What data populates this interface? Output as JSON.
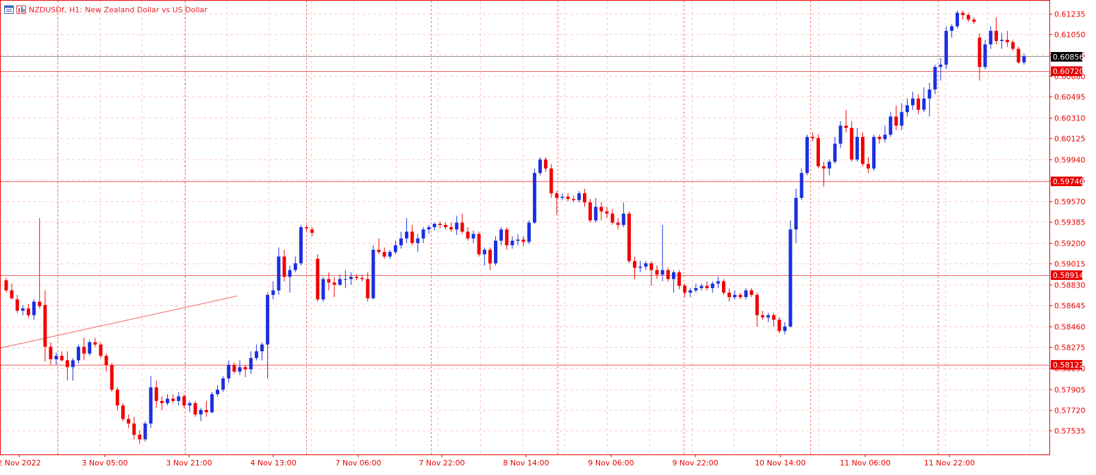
{
  "header": {
    "symbol": "NZDUSDf,",
    "timeframe": "H1:",
    "description": "New Zealand Dollar vs US Dollar",
    "icons": [
      "chart-window-icon",
      "indicator-icon"
    ]
  },
  "colors": {
    "bull": "#1a2fe0",
    "bear": "#f00000",
    "grid": "#ffc9c9",
    "frame": "#e80000",
    "level": "#f26060",
    "bid": "#909090",
    "text": "#e80000"
  },
  "chart_data": {
    "type": "candlestick",
    "symbol": "NZDUSDf",
    "timeframe": "H1",
    "title": "New Zealand Dollar vs US Dollar",
    "ylim": [
      0.5742,
      0.613
    ],
    "price_ticks": [
      "0.61235",
      "0.61050",
      "0.60865",
      "0.60680",
      "0.60495",
      "0.60310",
      "0.60125",
      "0.59940",
      "0.59755",
      "0.59570",
      "0.59385",
      "0.59200",
      "0.59015",
      "0.58830",
      "0.58645",
      "0.58460",
      "0.58275",
      "0.58090",
      "0.57905",
      "0.57720",
      "0.57535"
    ],
    "time_labels": [
      "2 Nov 2022",
      "3 Nov 05:00",
      "3 Nov 21:00",
      "4 Nov 13:00",
      "7 Nov 06:00",
      "7 Nov 22:00",
      "8 Nov 14:00",
      "9 Nov 06:00",
      "9 Nov 22:00",
      "10 Nov 14:00",
      "11 Nov 06:00",
      "11 Nov 22:00"
    ],
    "bid_price": "0.60856",
    "horizontal_levels": [
      "0.60720",
      "0.59746",
      "0.58914",
      "0.58122"
    ],
    "trendline": {
      "start_price": 0.5827,
      "end_price": 0.5873
    },
    "candles": [
      [
        0.5887,
        0.5889,
        0.5876,
        0.5878
      ],
      [
        0.5878,
        0.5884,
        0.587,
        0.5871
      ],
      [
        0.587,
        0.5874,
        0.5858,
        0.586
      ],
      [
        0.586,
        0.5865,
        0.5856,
        0.5862
      ],
      [
        0.5862,
        0.5866,
        0.5854,
        0.5856
      ],
      [
        0.5856,
        0.587,
        0.5852,
        0.5868
      ],
      [
        0.5868,
        0.5942,
        0.5862,
        0.5864
      ],
      [
        0.5865,
        0.5878,
        0.5815,
        0.5828
      ],
      [
        0.5828,
        0.5832,
        0.5812,
        0.5817
      ],
      [
        0.5817,
        0.5823,
        0.5812,
        0.582
      ],
      [
        0.582,
        0.5824,
        0.5815,
        0.5816
      ],
      [
        0.5816,
        0.5824,
        0.5798,
        0.581
      ],
      [
        0.581,
        0.5818,
        0.5798,
        0.5816
      ],
      [
        0.5816,
        0.583,
        0.5813,
        0.5828
      ],
      [
        0.5828,
        0.5836,
        0.5816,
        0.5822
      ],
      [
        0.5822,
        0.5834,
        0.582,
        0.5832
      ],
      [
        0.5832,
        0.5836,
        0.5828,
        0.583
      ],
      [
        0.583,
        0.5832,
        0.5818,
        0.582
      ],
      [
        0.582,
        0.5822,
        0.5806,
        0.5812
      ],
      [
        0.5812,
        0.5814,
        0.5788,
        0.579
      ],
      [
        0.579,
        0.5792,
        0.5772,
        0.5776
      ],
      [
        0.5776,
        0.5778,
        0.5762,
        0.5764
      ],
      [
        0.5764,
        0.5768,
        0.5756,
        0.576
      ],
      [
        0.576,
        0.5766,
        0.5746,
        0.575
      ],
      [
        0.575,
        0.5754,
        0.5742,
        0.5746
      ],
      [
        0.5746,
        0.5762,
        0.5744,
        0.576
      ],
      [
        0.576,
        0.5802,
        0.5756,
        0.5792
      ],
      [
        0.5792,
        0.5798,
        0.5774,
        0.578
      ],
      [
        0.578,
        0.5784,
        0.5772,
        0.5778
      ],
      [
        0.5778,
        0.5786,
        0.5776,
        0.5782
      ],
      [
        0.5782,
        0.5786,
        0.5778,
        0.578
      ],
      [
        0.578,
        0.5788,
        0.5776,
        0.5784
      ],
      [
        0.5784,
        0.5786,
        0.5774,
        0.5776
      ],
      [
        0.5776,
        0.578,
        0.577,
        0.5778
      ],
      [
        0.5778,
        0.578,
        0.5766,
        0.5768
      ],
      [
        0.5768,
        0.5774,
        0.5762,
        0.5772
      ],
      [
        0.5772,
        0.578,
        0.5766,
        0.577
      ],
      [
        0.577,
        0.5788,
        0.5769,
        0.5786
      ],
      [
        0.5786,
        0.5794,
        0.5784,
        0.579
      ],
      [
        0.579,
        0.5802,
        0.5788,
        0.58
      ],
      [
        0.58,
        0.5816,
        0.5796,
        0.5812
      ],
      [
        0.5812,
        0.5814,
        0.5804,
        0.5806
      ],
      [
        0.5806,
        0.5816,
        0.5803,
        0.581
      ],
      [
        0.581,
        0.5812,
        0.5801,
        0.5808
      ],
      [
        0.5808,
        0.5824,
        0.5804,
        0.5818
      ],
      [
        0.5818,
        0.583,
        0.5816,
        0.5824
      ],
      [
        0.5824,
        0.5832,
        0.5816,
        0.583
      ],
      [
        0.583,
        0.5876,
        0.58,
        0.5874
      ],
      [
        0.5874,
        0.5886,
        0.587,
        0.5878
      ],
      [
        0.5878,
        0.5916,
        0.5874,
        0.5908
      ],
      [
        0.5908,
        0.5914,
        0.5886,
        0.589
      ],
      [
        0.589,
        0.59,
        0.5876,
        0.5896
      ],
      [
        0.5896,
        0.5908,
        0.5894,
        0.5902
      ],
      [
        0.5902,
        0.5936,
        0.59,
        0.5934
      ],
      [
        0.5934,
        0.5936,
        0.593,
        0.5933
      ],
      [
        0.5932,
        0.5934,
        0.5926,
        0.5929
      ],
      [
        0.5906,
        0.591,
        0.5868,
        0.587
      ],
      [
        0.587,
        0.589,
        0.5868,
        0.5888
      ],
      [
        0.5888,
        0.5894,
        0.5878,
        0.5885
      ],
      [
        0.5885,
        0.589,
        0.5872,
        0.5883
      ],
      [
        0.5883,
        0.5892,
        0.5882,
        0.5888
      ],
      [
        0.5888,
        0.5896,
        0.588,
        0.5888
      ],
      [
        0.5888,
        0.5894,
        0.5883,
        0.589
      ],
      [
        0.589,
        0.5892,
        0.5887,
        0.5889
      ],
      [
        0.5889,
        0.5892,
        0.5886,
        0.5888
      ],
      [
        0.5888,
        0.5894,
        0.5868,
        0.5871
      ],
      [
        0.5871,
        0.5918,
        0.587,
        0.5914
      ],
      [
        0.5914,
        0.5924,
        0.591,
        0.5912
      ],
      [
        0.5912,
        0.5916,
        0.5906,
        0.5908
      ],
      [
        0.5908,
        0.5914,
        0.5906,
        0.5912
      ],
      [
        0.5912,
        0.5922,
        0.591,
        0.5918
      ],
      [
        0.5918,
        0.593,
        0.5915,
        0.5924
      ],
      [
        0.5924,
        0.5942,
        0.592,
        0.593
      ],
      [
        0.593,
        0.5936,
        0.5918,
        0.592
      ],
      [
        0.592,
        0.5928,
        0.5912,
        0.5924
      ],
      [
        0.5924,
        0.5934,
        0.592,
        0.5932
      ],
      [
        0.5932,
        0.5936,
        0.5928,
        0.5934
      ],
      [
        0.5934,
        0.5938,
        0.5931,
        0.5937
      ],
      [
        0.5937,
        0.5939,
        0.5933,
        0.5936
      ],
      [
        0.5936,
        0.5938,
        0.5932,
        0.5934
      ],
      [
        0.5934,
        0.5938,
        0.593,
        0.5932
      ],
      [
        0.5932,
        0.5944,
        0.5927,
        0.5938
      ],
      [
        0.5938,
        0.5946,
        0.5928,
        0.593
      ],
      [
        0.593,
        0.5934,
        0.5922,
        0.5924
      ],
      [
        0.5924,
        0.5931,
        0.592,
        0.5928
      ],
      [
        0.5928,
        0.593,
        0.5908,
        0.591
      ],
      [
        0.591,
        0.5916,
        0.59,
        0.5914
      ],
      [
        0.5914,
        0.5916,
        0.5896,
        0.5902
      ],
      [
        0.5902,
        0.5926,
        0.59,
        0.5922
      ],
      [
        0.5922,
        0.5934,
        0.5918,
        0.5932
      ],
      [
        0.5932,
        0.5934,
        0.5914,
        0.5918
      ],
      [
        0.5918,
        0.5926,
        0.5915,
        0.5922
      ],
      [
        0.5922,
        0.5928,
        0.5918,
        0.5923
      ],
      [
        0.5923,
        0.5926,
        0.5917,
        0.5921
      ],
      [
        0.5921,
        0.594,
        0.5919,
        0.5938
      ],
      [
        0.5938,
        0.5986,
        0.5937,
        0.5982
      ],
      [
        0.5982,
        0.5996,
        0.598,
        0.5994
      ],
      [
        0.5994,
        0.5996,
        0.5983,
        0.5986
      ],
      [
        0.5986,
        0.599,
        0.596,
        0.5964
      ],
      [
        0.5964,
        0.5966,
        0.5945,
        0.596
      ],
      [
        0.596,
        0.5964,
        0.5958,
        0.5961
      ],
      [
        0.5961,
        0.5964,
        0.5957,
        0.5959
      ],
      [
        0.5959,
        0.5962,
        0.5956,
        0.5958
      ],
      [
        0.5958,
        0.5966,
        0.5956,
        0.5964
      ],
      [
        0.5964,
        0.5968,
        0.5952,
        0.5956
      ],
      [
        0.5956,
        0.5959,
        0.5938,
        0.594
      ],
      [
        0.594,
        0.596,
        0.5938,
        0.5952
      ],
      [
        0.5952,
        0.5956,
        0.594,
        0.5948
      ],
      [
        0.5948,
        0.5952,
        0.5942,
        0.5946
      ],
      [
        0.5946,
        0.595,
        0.5936,
        0.5938
      ],
      [
        0.5938,
        0.5942,
        0.5932,
        0.5936
      ],
      [
        0.5936,
        0.5956,
        0.5934,
        0.5946
      ],
      [
        0.5946,
        0.5948,
        0.5902,
        0.5904
      ],
      [
        0.5904,
        0.5908,
        0.5888,
        0.5898
      ],
      [
        0.5898,
        0.5904,
        0.5894,
        0.5899
      ],
      [
        0.5899,
        0.5904,
        0.5896,
        0.5902
      ],
      [
        0.5902,
        0.5904,
        0.5882,
        0.5896
      ],
      [
        0.5896,
        0.59,
        0.5888,
        0.5892
      ],
      [
        0.5892,
        0.5936,
        0.5886,
        0.5896
      ],
      [
        0.5896,
        0.5898,
        0.5886,
        0.5888
      ],
      [
        0.5888,
        0.5896,
        0.5876,
        0.5894
      ],
      [
        0.5894,
        0.5896,
        0.5879,
        0.5882
      ],
      [
        0.5882,
        0.5884,
        0.5872,
        0.5876
      ],
      [
        0.5876,
        0.588,
        0.5872,
        0.5878
      ],
      [
        0.5878,
        0.5884,
        0.5876,
        0.588
      ],
      [
        0.588,
        0.5884,
        0.5878,
        0.5882
      ],
      [
        0.5882,
        0.5886,
        0.5878,
        0.588
      ],
      [
        0.588,
        0.5886,
        0.5876,
        0.5884
      ],
      [
        0.5884,
        0.589,
        0.588,
        0.5886
      ],
      [
        0.5886,
        0.5888,
        0.5874,
        0.5876
      ],
      [
        0.5876,
        0.588,
        0.5868,
        0.5872
      ],
      [
        0.5872,
        0.5878,
        0.587,
        0.5874
      ],
      [
        0.5874,
        0.5876,
        0.587,
        0.5872
      ],
      [
        0.5872,
        0.588,
        0.587,
        0.5878
      ],
      [
        0.5878,
        0.588,
        0.5872,
        0.5874
      ],
      [
        0.5874,
        0.5876,
        0.5846,
        0.5856
      ],
      [
        0.5856,
        0.586,
        0.5852,
        0.5854
      ],
      [
        0.5854,
        0.5858,
        0.585,
        0.5856
      ],
      [
        0.5856,
        0.5858,
        0.5846,
        0.5852
      ],
      [
        0.5852,
        0.5854,
        0.584,
        0.5842
      ],
      [
        0.5842,
        0.585,
        0.5839,
        0.5846
      ],
      [
        0.5846,
        0.594,
        0.5845,
        0.5932
      ],
      [
        0.5932,
        0.5968,
        0.592,
        0.596
      ],
      [
        0.596,
        0.5986,
        0.5958,
        0.5982
      ],
      [
        0.5982,
        0.6016,
        0.598,
        0.6014
      ],
      [
        0.6014,
        0.6018,
        0.601,
        0.6013
      ],
      [
        0.6013,
        0.6016,
        0.5986,
        0.5988
      ],
      [
        0.5988,
        0.5992,
        0.597,
        0.5986
      ],
      [
        0.5986,
        0.5994,
        0.598,
        0.5992
      ],
      [
        0.5992,
        0.6014,
        0.599,
        0.6008
      ],
      [
        0.6008,
        0.6028,
        0.6004,
        0.6024
      ],
      [
        0.6024,
        0.6038,
        0.6018,
        0.6022
      ],
      [
        0.6022,
        0.6028,
        0.5992,
        0.5994
      ],
      [
        0.5994,
        0.6022,
        0.5992,
        0.6014
      ],
      [
        0.6014,
        0.6018,
        0.5988,
        0.599
      ],
      [
        0.599,
        0.5996,
        0.5982,
        0.5986
      ],
      [
        0.5986,
        0.6016,
        0.5984,
        0.6014
      ],
      [
        0.6014,
        0.6016,
        0.6008,
        0.6012
      ],
      [
        0.6012,
        0.6024,
        0.6009,
        0.6016
      ],
      [
        0.6016,
        0.6036,
        0.6014,
        0.6032
      ],
      [
        0.6032,
        0.6042,
        0.602,
        0.6024
      ],
      [
        0.6024,
        0.6044,
        0.602,
        0.6036
      ],
      [
        0.6036,
        0.6048,
        0.6032,
        0.6042
      ],
      [
        0.6042,
        0.6054,
        0.6038,
        0.6048
      ],
      [
        0.6048,
        0.6052,
        0.6034,
        0.6038
      ],
      [
        0.6038,
        0.6058,
        0.6036,
        0.6048
      ],
      [
        0.6048,
        0.6062,
        0.6032,
        0.6056
      ],
      [
        0.6056,
        0.6078,
        0.6052,
        0.6076
      ],
      [
        0.6076,
        0.6084,
        0.6064,
        0.6078
      ],
      [
        0.6078,
        0.6112,
        0.6074,
        0.6108
      ],
      [
        0.6108,
        0.6114,
        0.6102,
        0.6112
      ],
      [
        0.6112,
        0.6126,
        0.611,
        0.6124
      ],
      [
        0.6124,
        0.6126,
        0.6118,
        0.6122
      ],
      [
        0.6122,
        0.6124,
        0.6116,
        0.6118
      ],
      [
        0.6118,
        0.612,
        0.6114,
        0.6116
      ],
      [
        0.6102,
        0.6106,
        0.6064,
        0.6076
      ],
      [
        0.6076,
        0.61,
        0.6074,
        0.6096
      ],
      [
        0.6096,
        0.6112,
        0.6092,
        0.6108
      ],
      [
        0.6108,
        0.612,
        0.6096,
        0.6099
      ],
      [
        0.6099,
        0.6106,
        0.6092,
        0.61
      ],
      [
        0.61,
        0.6108,
        0.6094,
        0.6098
      ],
      [
        0.6098,
        0.61,
        0.609,
        0.6092
      ],
      [
        0.6092,
        0.6094,
        0.6079,
        0.608
      ],
      [
        0.608,
        0.6088,
        0.6078,
        0.60856
      ]
    ]
  }
}
